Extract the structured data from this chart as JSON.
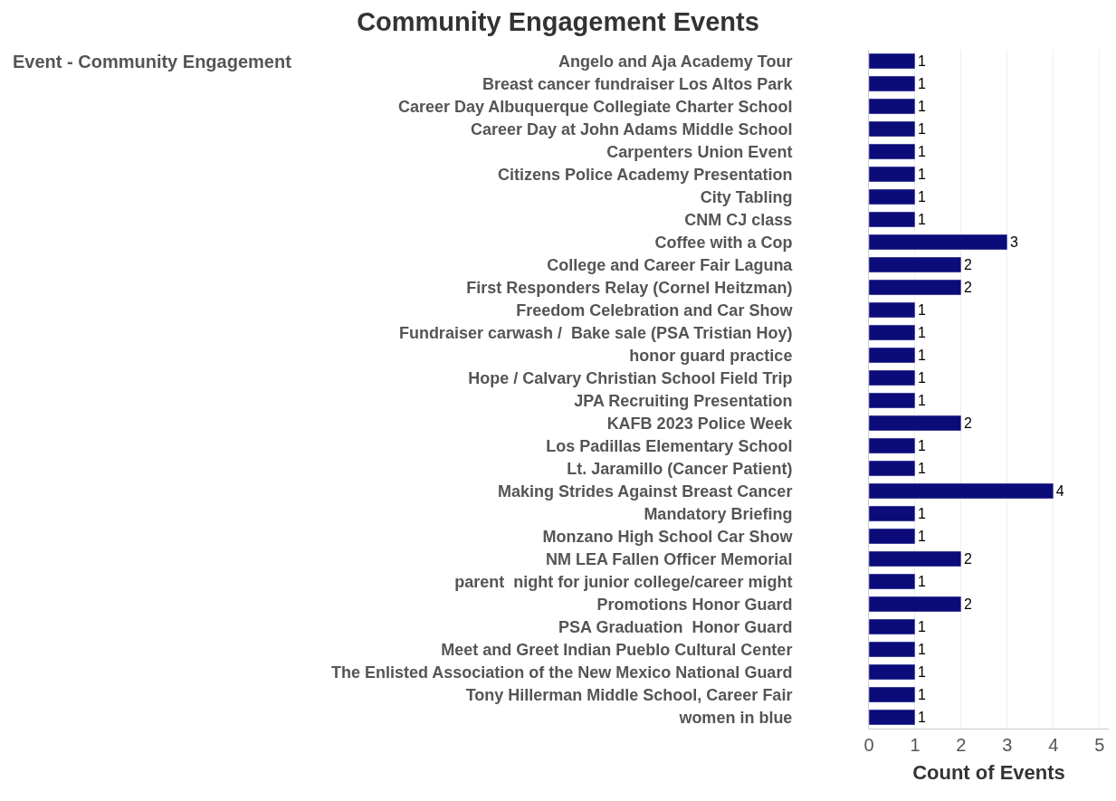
{
  "chart_data": {
    "type": "bar",
    "orientation": "horizontal",
    "title": "Community Engagement Events",
    "ylabel": "Event - Community Engagement",
    "xlabel": "Count of Events",
    "categories": [
      "Angelo and Aja Academy Tour",
      "Breast cancer fundraiser Los Altos Park",
      "Career Day Albuquerque Collegiate Charter School",
      "Career Day at John Adams Middle School",
      "Carpenters Union Event",
      "Citizens Police Academy Presentation",
      "City Tabling",
      "CNM CJ class",
      "Coffee with a Cop",
      "College and Career Fair Laguna",
      "First Responders Relay (Cornel Heitzman)",
      "Freedom Celebration and Car Show",
      "Fundraiser carwash /  Bake sale (PSA Tristian Hoy)",
      "honor guard practice",
      "Hope / Calvary Christian School Field Trip",
      "JPA Recruiting Presentation",
      "KAFB 2023 Police Week",
      "Los Padillas Elementary School",
      "Lt. Jaramillo (Cancer Patient)",
      "Making Strides Against Breast Cancer",
      "Mandatory Briefing",
      "Monzano High School Car Show",
      "NM LEA Fallen Officer Memorial",
      "parent  night for junior college/career might",
      "Promotions Honor Guard",
      "PSA Graduation  Honor Guard",
      "Meet and Greet Indian Pueblo Cultural Center",
      "The Enlisted Association of the New Mexico National Guard",
      "Tony Hillerman Middle School, Career Fair",
      "women in blue"
    ],
    "values": [
      1,
      1,
      1,
      1,
      1,
      1,
      1,
      1,
      3,
      2,
      2,
      1,
      1,
      1,
      1,
      1,
      2,
      1,
      1,
      4,
      1,
      1,
      2,
      1,
      2,
      1,
      1,
      1,
      1,
      1
    ],
    "color": "#0b0b7a",
    "data_labels": true,
    "xlim": [
      0,
      5.2
    ],
    "xticks": [
      0,
      1,
      2,
      3,
      4,
      5
    ],
    "grid": "x",
    "legend": false
  }
}
